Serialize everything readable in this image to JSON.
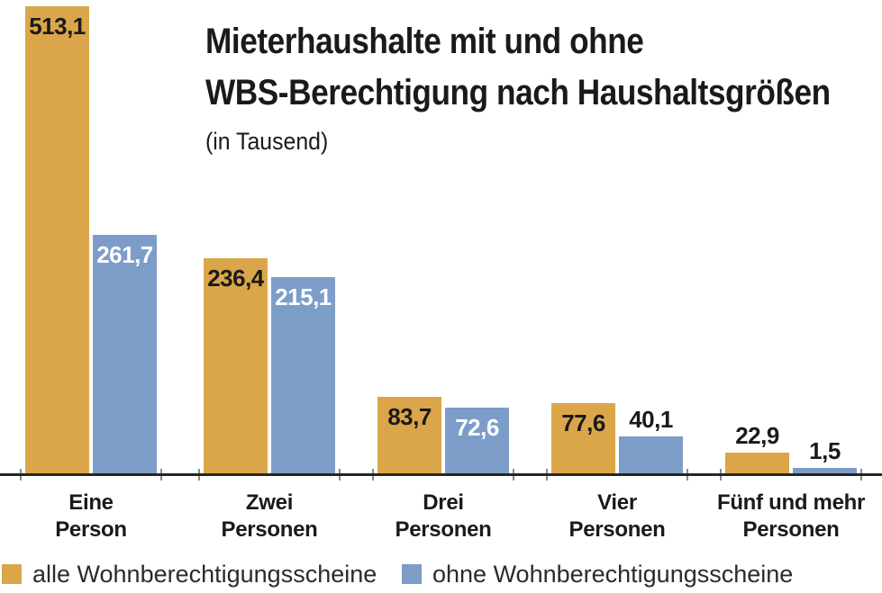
{
  "chart_data": {
    "type": "bar",
    "title_lines": [
      "Mieterhaushalte mit und ohne",
      "WBS-Berechtigung nach Haushaltsgrößen"
    ],
    "subtitle": "(in Tausend)",
    "unit": "Tausend",
    "categories": [
      "Eine\nPerson",
      "Zwei\nPersonen",
      "Drei\nPersonen",
      "Vier\nPersonen",
      "Fünf und mehr\nPersonen"
    ],
    "series": [
      {
        "name": "alle Wohnberechtigungsscheine",
        "color": "#DBA64A",
        "values": [
          513.1,
          236.4,
          83.7,
          77.6,
          22.9
        ]
      },
      {
        "name": "ohne Wohnberechtigungsscheine",
        "color": "#7D9DC9",
        "values": [
          261.7,
          215.1,
          72.6,
          40.1,
          1.5
        ]
      }
    ],
    "value_label_decimal_separator": ",",
    "ylim": [
      0,
      520
    ],
    "grid": false,
    "legend_position": "bottom",
    "axis_color": "#262626",
    "value_label_color_inside_orange": "#1a1a1a",
    "value_label_color_inside_blue": "#ffffff",
    "value_label_color_outside": "#1a1a1a"
  }
}
